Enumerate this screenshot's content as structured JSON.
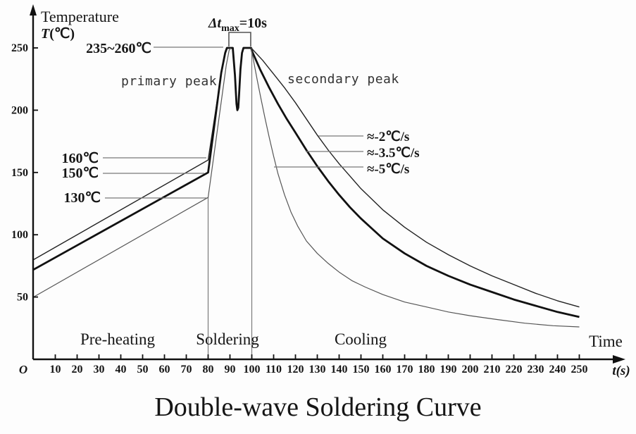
{
  "chart_data": {
    "type": "line",
    "title": "Double-wave Soldering Curve",
    "xlabel": "t(s)",
    "xlabel_caption": "Time",
    "ylabel_caption": "Temperature",
    "ylabel_unit_t": "T",
    "ylabel_unit_rest": "(℃)",
    "origin_label": "O",
    "xlim": [
      0,
      260
    ],
    "ylim": [
      0,
      285
    ],
    "grid": false,
    "legend": "none",
    "x_ticks": [
      10,
      20,
      30,
      40,
      50,
      60,
      70,
      80,
      90,
      100,
      110,
      120,
      130,
      140,
      150,
      160,
      170,
      180,
      190,
      200,
      210,
      220,
      230,
      240,
      250
    ],
    "y_ticks": [
      50,
      100,
      150,
      200,
      250
    ],
    "phases": [
      {
        "label": "Pre-heating",
        "t_range": [
          0,
          80
        ]
      },
      {
        "label": "Soldering",
        "t_range": [
          80,
          100
        ]
      },
      {
        "label": "Cooling",
        "t_range": [
          100,
          250
        ]
      }
    ],
    "phase_boundaries": [
      {
        "t": 80,
        "T_top": 130
      },
      {
        "t": 100,
        "T_top": 250
      }
    ],
    "peak_gap": {
      "label_prefix": "Δt",
      "label_sub": "max",
      "label_suffix": "=10s",
      "t1": 89.5,
      "t2": 99.5,
      "value_s": 10
    },
    "annotations": {
      "peak_range": "235~260℃",
      "primary_peak": "primary peak",
      "secondary_peak": "secondary peak",
      "preheat_end_temps": [
        "160℃",
        "150℃",
        "130℃"
      ],
      "cooling_rates": [
        "≈-2℃/s",
        "≈-3.5℃/s",
        "≈-5℃/s"
      ]
    },
    "series": [
      {
        "name": "preheat-to-160C",
        "style": "thin",
        "points": [
          [
            0,
            80
          ],
          [
            80,
            160
          ],
          [
            86.5,
            235
          ],
          [
            88,
            248
          ],
          [
            88.6,
            250
          ]
        ]
      },
      {
        "name": "main-profile-150C-double-peak-cool-3.5C-per-s",
        "style": "bold",
        "points": [
          [
            0,
            72
          ],
          [
            80,
            150
          ],
          [
            86,
            230
          ],
          [
            87.8,
            246
          ],
          [
            88.6,
            250
          ],
          [
            91.3,
            250
          ],
          [
            92.3,
            228
          ],
          [
            93.0,
            205
          ],
          [
            93.4,
            200
          ],
          [
            93.8,
            202
          ],
          [
            94.2,
            213
          ],
          [
            94.8,
            233
          ],
          [
            95.5,
            246
          ],
          [
            96.2,
            250
          ],
          [
            99.7,
            250
          ],
          [
            100.2,
            247
          ],
          [
            104,
            232
          ],
          [
            108,
            218
          ],
          [
            112,
            205
          ],
          [
            116,
            193
          ],
          [
            120,
            182
          ],
          [
            125,
            168
          ],
          [
            130,
            155
          ],
          [
            135,
            143
          ],
          [
            140,
            132
          ],
          [
            145,
            122
          ],
          [
            150,
            113
          ],
          [
            155,
            105
          ],
          [
            160,
            97
          ],
          [
            170,
            85
          ],
          [
            180,
            75
          ],
          [
            190,
            67
          ],
          [
            200,
            60
          ],
          [
            210,
            54
          ],
          [
            220,
            48
          ],
          [
            230,
            43
          ],
          [
            240,
            38
          ],
          [
            250,
            34
          ]
        ]
      },
      {
        "name": "preheat-to-130C",
        "style": "thin-gray",
        "points": [
          [
            0,
            50
          ],
          [
            80,
            130
          ],
          [
            88.3,
            236
          ],
          [
            89.6,
            248
          ],
          [
            90.4,
            250
          ]
        ]
      },
      {
        "name": "cooling-2C-per-s",
        "style": "thin",
        "points": [
          [
            99.7,
            250
          ],
          [
            105,
            240
          ],
          [
            110,
            229
          ],
          [
            115,
            218
          ],
          [
            120,
            206
          ],
          [
            125,
            193
          ],
          [
            130,
            180
          ],
          [
            135,
            168
          ],
          [
            140,
            157
          ],
          [
            145,
            147
          ],
          [
            150,
            137
          ],
          [
            160,
            120
          ],
          [
            170,
            106
          ],
          [
            180,
            94
          ],
          [
            190,
            84
          ],
          [
            200,
            75
          ],
          [
            210,
            67
          ],
          [
            220,
            60
          ],
          [
            230,
            53
          ],
          [
            240,
            47
          ],
          [
            250,
            42
          ]
        ]
      },
      {
        "name": "cooling-5C-per-s",
        "style": "thin-gray",
        "points": [
          [
            99.7,
            250
          ],
          [
            101,
            238
          ],
          [
            102.5,
            224
          ],
          [
            104,
            211
          ],
          [
            106,
            194
          ],
          [
            108,
            178
          ],
          [
            110,
            163
          ],
          [
            112,
            149
          ],
          [
            115,
            132
          ],
          [
            118,
            118
          ],
          [
            121,
            107
          ],
          [
            125,
            95
          ],
          [
            130,
            85
          ],
          [
            135,
            77
          ],
          [
            140,
            70
          ],
          [
            146,
            63
          ],
          [
            152,
            58
          ],
          [
            160,
            52
          ],
          [
            170,
            46
          ],
          [
            180,
            42
          ],
          [
            190,
            38
          ],
          [
            200,
            35
          ],
          [
            212,
            32
          ],
          [
            225,
            29
          ],
          [
            238,
            27
          ],
          [
            250,
            26
          ]
        ]
      }
    ]
  }
}
